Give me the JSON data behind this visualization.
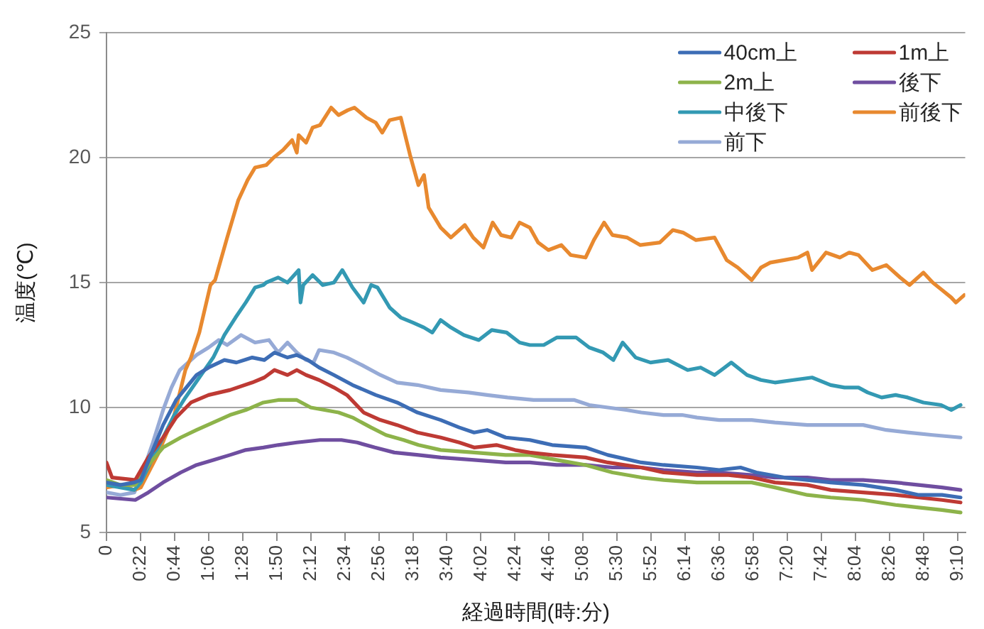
{
  "chart_data": {
    "type": "line",
    "xlabel": "経過時間(時:分)",
    "ylabel": "温度(℃)",
    "xlim": [
      0,
      9.25
    ],
    "ylim": [
      5,
      25
    ],
    "yticks": [
      5,
      10,
      15,
      20,
      25
    ],
    "xticks": [
      0,
      {
        "value": 0.3667,
        "label": "0:22"
      },
      {
        "value": 0.7333,
        "label": "0:44"
      },
      {
        "value": 1.1,
        "label": "1:06"
      },
      {
        "value": 1.4667,
        "label": "1:28"
      },
      {
        "value": 1.8333,
        "label": "1:50"
      },
      {
        "value": 2.2,
        "label": "2:12"
      },
      {
        "value": 2.5667,
        "label": "2:34"
      },
      {
        "value": 2.9333,
        "label": "2:56"
      },
      {
        "value": 3.3,
        "label": "3:18"
      },
      {
        "value": 3.6667,
        "label": "3:40"
      },
      {
        "value": 4.0333,
        "label": "4:02"
      },
      {
        "value": 4.4,
        "label": "4:24"
      },
      {
        "value": 4.7667,
        "label": "4:46"
      },
      {
        "value": 5.1333,
        "label": "5:08"
      },
      {
        "value": 5.5,
        "label": "5:30"
      },
      {
        "value": 5.8667,
        "label": "5:52"
      },
      {
        "value": 6.2333,
        "label": "6:14"
      },
      {
        "value": 6.6,
        "label": "6:36"
      },
      {
        "value": 6.9667,
        "label": "6:58"
      },
      {
        "value": 7.3333,
        "label": "7:20"
      },
      {
        "value": 7.7,
        "label": "7:42"
      },
      {
        "value": 8.0667,
        "label": "8:04"
      },
      {
        "value": 8.4333,
        "label": "8:26"
      },
      {
        "value": 8.8,
        "label": "8:48"
      },
      {
        "value": 9.1667,
        "label": "9:10"
      }
    ],
    "grid": "y",
    "legend": "top right",
    "marker": "none",
    "line_style": "solid",
    "series": [
      {
        "name": "40cm上",
        "color": "#3d6db5",
        "x": [
          0,
          0.15,
          0.3,
          0.37,
          0.5,
          0.61,
          0.75,
          0.97,
          1.1,
          1.27,
          1.4,
          1.57,
          1.7,
          1.81,
          1.95,
          2.05,
          2.17,
          2.29,
          2.45,
          2.65,
          2.9,
          3.13,
          3.35,
          3.6,
          3.8,
          3.96,
          4.1,
          4.3,
          4.56,
          4.8,
          5.16,
          5.4,
          5.76,
          6.0,
          6.36,
          6.6,
          6.83,
          7.0,
          7.3,
          7.55,
          7.8,
          8.15,
          8.5,
          8.75,
          9.0,
          9.2
        ],
        "values": [
          7.0,
          6.9,
          7.0,
          7.1,
          8.3,
          9.3,
          10.3,
          11.3,
          11.6,
          11.9,
          11.8,
          12.0,
          11.9,
          12.2,
          12.0,
          12.1,
          11.9,
          11.6,
          11.3,
          10.9,
          10.5,
          10.2,
          9.8,
          9.5,
          9.2,
          9.0,
          9.1,
          8.8,
          8.7,
          8.5,
          8.4,
          8.1,
          7.8,
          7.7,
          7.6,
          7.5,
          7.6,
          7.4,
          7.2,
          7.1,
          7.0,
          6.9,
          6.7,
          6.5,
          6.5,
          6.4
        ]
      },
      {
        "name": "1m上",
        "color": "#be3a34",
        "x": [
          0,
          0.06,
          0.31,
          0.45,
          0.61,
          0.75,
          0.91,
          1.1,
          1.33,
          1.57,
          1.7,
          1.81,
          1.95,
          2.05,
          2.15,
          2.29,
          2.45,
          2.59,
          2.77,
          2.95,
          3.13,
          3.35,
          3.6,
          3.8,
          3.96,
          4.2,
          4.4,
          4.56,
          4.8,
          5.16,
          5.4,
          5.76,
          6.0,
          6.36,
          6.7,
          6.95,
          7.2,
          7.55,
          7.8,
          8.15,
          8.5,
          8.75,
          9.0,
          9.2
        ],
        "values": [
          7.8,
          7.2,
          7.1,
          8.0,
          8.8,
          9.6,
          10.2,
          10.5,
          10.7,
          11.0,
          11.2,
          11.5,
          11.3,
          11.5,
          11.3,
          11.1,
          10.8,
          10.5,
          9.8,
          9.5,
          9.3,
          9.0,
          8.8,
          8.6,
          8.4,
          8.5,
          8.3,
          8.2,
          8.1,
          8.0,
          7.8,
          7.6,
          7.4,
          7.3,
          7.3,
          7.2,
          7.0,
          6.9,
          6.7,
          6.6,
          6.5,
          6.4,
          6.3,
          6.2
        ]
      },
      {
        "name": "2m上",
        "color": "#8db34a",
        "x": [
          0,
          0.15,
          0.31,
          0.45,
          0.61,
          0.8,
          0.97,
          1.15,
          1.33,
          1.5,
          1.69,
          1.85,
          2.05,
          2.2,
          2.35,
          2.5,
          2.65,
          2.85,
          3.01,
          3.2,
          3.36,
          3.6,
          3.96,
          4.3,
          4.56,
          4.85,
          5.16,
          5.45,
          5.76,
          6.0,
          6.36,
          6.6,
          6.95,
          7.2,
          7.55,
          7.8,
          8.15,
          8.5,
          8.75,
          9.0,
          9.2
        ],
        "values": [
          7.1,
          6.9,
          6.9,
          7.7,
          8.4,
          8.8,
          9.1,
          9.4,
          9.7,
          9.9,
          10.2,
          10.3,
          10.3,
          10.0,
          9.9,
          9.8,
          9.6,
          9.2,
          8.9,
          8.7,
          8.5,
          8.3,
          8.2,
          8.1,
          8.1,
          7.9,
          7.7,
          7.4,
          7.2,
          7.1,
          7.0,
          7.0,
          7.0,
          6.8,
          6.5,
          6.4,
          6.3,
          6.1,
          6.0,
          5.9,
          5.8
        ]
      },
      {
        "name": "後下",
        "color": "#6f4ea0",
        "x": [
          0,
          0.31,
          0.45,
          0.61,
          0.8,
          0.97,
          1.15,
          1.33,
          1.5,
          1.69,
          1.85,
          2.05,
          2.3,
          2.53,
          2.7,
          2.89,
          3.1,
          3.36,
          3.6,
          3.96,
          4.3,
          4.56,
          4.85,
          5.16,
          5.45,
          5.76,
          6.0,
          6.36,
          6.6,
          6.95,
          7.2,
          7.55,
          7.8,
          8.15,
          8.5,
          8.75,
          9.0,
          9.2
        ],
        "values": [
          6.4,
          6.3,
          6.6,
          7.0,
          7.4,
          7.7,
          7.9,
          8.1,
          8.3,
          8.4,
          8.5,
          8.6,
          8.7,
          8.7,
          8.6,
          8.4,
          8.2,
          8.1,
          8.0,
          7.9,
          7.8,
          7.8,
          7.7,
          7.7,
          7.6,
          7.6,
          7.5,
          7.4,
          7.4,
          7.3,
          7.2,
          7.2,
          7.1,
          7.1,
          7.0,
          6.9,
          6.8,
          6.7
        ]
      },
      {
        "name": "中後下",
        "color": "#3399b3",
        "x": [
          0,
          0.15,
          0.3,
          0.37,
          0.5,
          0.61,
          0.73,
          0.85,
          1.0,
          1.15,
          1.27,
          1.39,
          1.5,
          1.6,
          1.69,
          1.72,
          1.85,
          1.95,
          2.07,
          2.09,
          2.12,
          2.22,
          2.33,
          2.45,
          2.54,
          2.65,
          2.77,
          2.85,
          2.92,
          3.05,
          3.17,
          3.3,
          3.42,
          3.51,
          3.6,
          3.71,
          3.85,
          4.01,
          4.15,
          4.31,
          4.45,
          4.56,
          4.71,
          4.85,
          5.06,
          5.2,
          5.35,
          5.46,
          5.56,
          5.7,
          5.86,
          6.05,
          6.26,
          6.4,
          6.55,
          6.73,
          6.9,
          7.05,
          7.2,
          7.4,
          7.6,
          7.8,
          7.95,
          8.1,
          8.2,
          8.35,
          8.5,
          8.63,
          8.8,
          8.99,
          9.1,
          9.2
        ],
        "values": [
          6.9,
          6.8,
          6.7,
          7.0,
          8.0,
          8.8,
          9.7,
          10.4,
          11.2,
          12.0,
          12.9,
          13.6,
          14.2,
          14.8,
          14.9,
          15.0,
          15.2,
          15.0,
          15.5,
          14.2,
          14.9,
          15.3,
          14.9,
          15.0,
          15.5,
          14.8,
          14.2,
          14.9,
          14.8,
          14.0,
          13.6,
          13.4,
          13.2,
          13.0,
          13.5,
          13.2,
          12.9,
          12.7,
          13.1,
          13.0,
          12.6,
          12.5,
          12.5,
          12.8,
          12.8,
          12.4,
          12.2,
          11.9,
          12.6,
          12.0,
          11.8,
          11.9,
          11.5,
          11.6,
          11.3,
          11.8,
          11.3,
          11.1,
          11.0,
          11.1,
          11.2,
          10.9,
          10.8,
          10.8,
          10.6,
          10.4,
          10.5,
          10.4,
          10.2,
          10.1,
          9.9,
          10.1
        ]
      },
      {
        "name": "前後下",
        "color": "#e8892f",
        "x": [
          0,
          0.15,
          0.3,
          0.37,
          0.55,
          0.73,
          0.85,
          0.91,
          1.0,
          1.12,
          1.17,
          1.3,
          1.42,
          1.52,
          1.6,
          1.72,
          1.8,
          1.9,
          2.0,
          2.05,
          2.07,
          2.15,
          2.22,
          2.3,
          2.42,
          2.5,
          2.6,
          2.67,
          2.8,
          2.9,
          2.97,
          3.05,
          3.17,
          3.27,
          3.36,
          3.42,
          3.47,
          3.6,
          3.71,
          3.86,
          3.95,
          4.06,
          4.16,
          4.25,
          4.36,
          4.45,
          4.56,
          4.65,
          4.76,
          4.9,
          5.0,
          5.16,
          5.25,
          5.36,
          5.45,
          5.61,
          5.75,
          5.96,
          6.1,
          6.21,
          6.35,
          6.55,
          6.68,
          6.8,
          6.95,
          7.05,
          7.15,
          7.3,
          7.45,
          7.55,
          7.6,
          7.75,
          7.9,
          8.0,
          8.1,
          8.25,
          8.4,
          8.55,
          8.65,
          8.8,
          8.9,
          9.0,
          9.1,
          9.15,
          9.24
        ],
        "values": [
          6.8,
          6.9,
          6.7,
          6.8,
          8.1,
          9.7,
          11.5,
          12.0,
          13.0,
          14.9,
          15.1,
          16.8,
          18.3,
          19.1,
          19.6,
          19.7,
          20.0,
          20.3,
          20.7,
          20.2,
          20.9,
          20.6,
          21.2,
          21.3,
          22.0,
          21.7,
          21.9,
          22.0,
          21.6,
          21.4,
          21.0,
          21.5,
          21.6,
          20.1,
          18.9,
          19.3,
          18.0,
          17.2,
          16.8,
          17.3,
          16.8,
          16.4,
          17.4,
          16.9,
          16.8,
          17.4,
          17.2,
          16.6,
          16.3,
          16.5,
          16.1,
          16.0,
          16.7,
          17.4,
          16.9,
          16.8,
          16.5,
          16.6,
          17.1,
          17.0,
          16.7,
          16.8,
          15.9,
          15.6,
          15.1,
          15.6,
          15.8,
          15.9,
          16.0,
          16.2,
          15.5,
          16.2,
          16.0,
          16.2,
          16.1,
          15.5,
          15.7,
          15.2,
          14.9,
          15.4,
          15.0,
          14.7,
          14.4,
          14.2,
          14.5
        ]
      },
      {
        "name": "前下",
        "color": "#96aad6",
        "x": [
          0,
          0.15,
          0.3,
          0.37,
          0.5,
          0.61,
          0.7,
          0.79,
          0.97,
          1.1,
          1.21,
          1.3,
          1.45,
          1.6,
          1.75,
          1.85,
          1.95,
          2.05,
          2.15,
          2.23,
          2.29,
          2.45,
          2.59,
          2.75,
          2.95,
          3.13,
          3.35,
          3.6,
          3.9,
          4.1,
          4.32,
          4.6,
          4.8,
          5.04,
          5.2,
          5.4,
          5.6,
          5.76,
          6.0,
          6.2,
          6.36,
          6.6,
          6.95,
          7.2,
          7.55,
          7.8,
          8.15,
          8.4,
          8.63,
          8.9,
          9.2
        ],
        "values": [
          6.6,
          6.5,
          6.6,
          7.2,
          8.6,
          9.9,
          10.8,
          11.5,
          12.1,
          12.4,
          12.7,
          12.5,
          12.9,
          12.6,
          12.7,
          12.2,
          12.6,
          12.2,
          11.9,
          11.8,
          12.3,
          12.2,
          12.0,
          11.7,
          11.3,
          11.0,
          10.9,
          10.7,
          10.6,
          10.5,
          10.4,
          10.3,
          10.3,
          10.3,
          10.1,
          10.0,
          9.9,
          9.8,
          9.7,
          9.7,
          9.6,
          9.5,
          9.5,
          9.4,
          9.3,
          9.3,
          9.3,
          9.1,
          9.0,
          8.9,
          8.8
        ]
      }
    ]
  }
}
